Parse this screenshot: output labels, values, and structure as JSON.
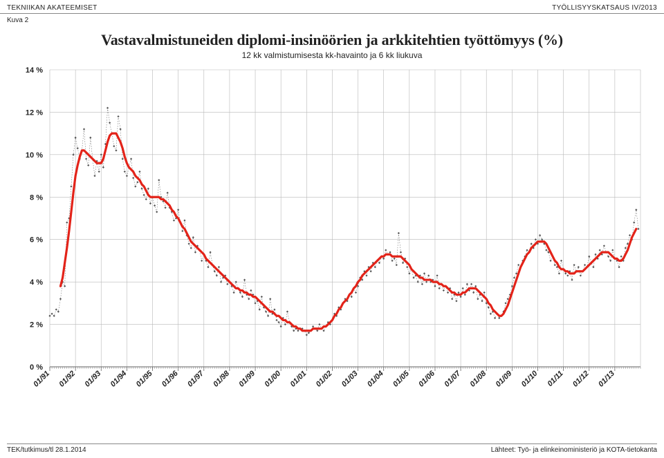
{
  "header": {
    "left": "TEKNIIKAN AKATEEMISET",
    "right": "TYÖLLISYYSKATSAUS IV/2013",
    "figure_label": "Kuva 2"
  },
  "title": {
    "main": "Vastavalmistuneiden diplomi-insinöörien ja arkkitehtien työttömyys (%)",
    "sub": "12 kk valmistumisesta kk-havainto ja 6 kk liukuva"
  },
  "footer": {
    "left": "TEK/tutkimus/tl 28.1.2014",
    "right": "Lähteet: Työ- ja elinkeinoministeriö ja KOTA-tietokanta"
  },
  "chart": {
    "type": "line",
    "background_color": "#ffffff",
    "grid_color": "#b8b8b8",
    "axis_color": "#666666",
    "label_fontsize": 11,
    "tick_fontsize": 11,
    "xlabel_rotation": -45,
    "ylim": [
      0,
      14
    ],
    "ytick_step": 2,
    "ytick_format_suffix": " %",
    "xlim": [
      0,
      276
    ],
    "xticks_major_every": 12,
    "xticks_minor_every": 1,
    "xlabels": [
      "01/91",
      "01/92",
      "01/93",
      "01/94",
      "01/95",
      "01/96",
      "01/97",
      "01/98",
      "01/99",
      "01/00",
      "01/01",
      "01/02",
      "01/03",
      "01/04",
      "01/05",
      "01/06",
      "01/07",
      "01/08",
      "01/09",
      "01/10",
      "01/11",
      "01/12",
      "01/13"
    ],
    "series": [
      {
        "name": "kk-havainto",
        "color": "#555555",
        "marker_color": "#555555",
        "marker": "diamond",
        "marker_size": 3.2,
        "line_width": 0.5,
        "dash": "1.5,2",
        "values": [
          2.4,
          2.5,
          2.4,
          2.7,
          2.6,
          3.2,
          4.0,
          3.8,
          6.8,
          7.0,
          8.5,
          10.0,
          10.8,
          10.3,
          9.8,
          10.2,
          11.2,
          9.8,
          9.5,
          10.8,
          9.8,
          9.0,
          9.7,
          9.2,
          10.0,
          9.4,
          10.5,
          12.2,
          11.5,
          11.0,
          10.4,
          10.2,
          11.8,
          11.2,
          9.8,
          9.2,
          9.0,
          9.4,
          9.8,
          8.9,
          8.5,
          8.7,
          9.2,
          8.4,
          8.1,
          7.9,
          8.4,
          7.7,
          8.0,
          7.6,
          7.3,
          8.8,
          8.0,
          7.8,
          7.5,
          8.2,
          7.5,
          7.3,
          6.9,
          7.0,
          7.4,
          6.8,
          6.4,
          6.9,
          6.2,
          5.8,
          5.6,
          6.1,
          5.4,
          5.7,
          5.5,
          5.0,
          5.3,
          5.0,
          4.7,
          5.4,
          4.8,
          4.5,
          4.3,
          4.7,
          4.0,
          4.2,
          4.3,
          3.9,
          4.0,
          3.8,
          3.5,
          4.0,
          3.7,
          3.5,
          3.3,
          4.1,
          3.4,
          3.2,
          3.6,
          3.4,
          3.0,
          3.1,
          2.7,
          3.3,
          2.8,
          2.6,
          2.4,
          3.2,
          2.5,
          2.7,
          2.2,
          2.1,
          1.9,
          2.3,
          2.0,
          2.6,
          2.1,
          1.9,
          1.7,
          1.8,
          1.7,
          1.8,
          1.8,
          1.7,
          1.5,
          1.6,
          1.7,
          1.9,
          1.8,
          1.7,
          2.0,
          1.8,
          1.7,
          1.9,
          2.1,
          2.0,
          2.2,
          2.5,
          2.4,
          2.8,
          2.7,
          3.0,
          3.2,
          3.1,
          3.4,
          3.3,
          3.7,
          3.5,
          3.8,
          4.2,
          4.1,
          4.5,
          4.3,
          4.7,
          4.5,
          4.9,
          4.7,
          5.0,
          4.9,
          5.2,
          5.1,
          5.5,
          5.3,
          5.4,
          5.0,
          5.1,
          4.8,
          6.3,
          5.4,
          4.9,
          5.1,
          4.7,
          4.4,
          4.6,
          4.2,
          4.3,
          4.0,
          4.3,
          3.9,
          4.4,
          4.0,
          4.3,
          4.0,
          4.1,
          3.8,
          4.3,
          3.7,
          3.9,
          3.6,
          3.8,
          3.5,
          3.7,
          3.2,
          3.4,
          3.1,
          3.5,
          3.3,
          3.7,
          3.4,
          3.9,
          3.6,
          3.9,
          3.5,
          3.8,
          3.2,
          3.4,
          3.1,
          3.5,
          3.0,
          2.8,
          2.5,
          2.6,
          2.3,
          2.5,
          2.3,
          2.4,
          2.6,
          3.0,
          3.2,
          3.4,
          3.8,
          4.2,
          4.4,
          4.8,
          4.7,
          5.0,
          5.2,
          5.5,
          5.4,
          5.8,
          5.6,
          6.0,
          5.8,
          6.2,
          6.0,
          5.8,
          5.5,
          5.4,
          5.0,
          5.2,
          4.8,
          4.7,
          4.4,
          5.0,
          4.6,
          4.4,
          4.3,
          4.5,
          4.1,
          4.8,
          4.5,
          4.7,
          4.3,
          4.5,
          4.8,
          4.7,
          5.2,
          4.9,
          4.7,
          5.3,
          5.1,
          5.5,
          5.3,
          5.7,
          5.4,
          5.2,
          5.0,
          5.5,
          5.1,
          5.0,
          4.7,
          5.2,
          5.0,
          5.6,
          5.8,
          6.2,
          6.0,
          6.8,
          7.4,
          6.5
        ]
      },
      {
        "name": "6kk-liukuva",
        "color": "#e32319",
        "line_width": 3.2,
        "marker": "none",
        "values": [
          null,
          null,
          null,
          null,
          null,
          3.8,
          4.2,
          4.9,
          5.6,
          6.4,
          7.3,
          8.2,
          9.0,
          9.5,
          9.9,
          10.2,
          10.2,
          10.1,
          10.0,
          9.9,
          9.8,
          9.7,
          9.6,
          9.6,
          9.6,
          9.8,
          10.2,
          10.6,
          10.9,
          11.0,
          11.0,
          11.0,
          10.8,
          10.6,
          10.3,
          9.9,
          9.6,
          9.4,
          9.3,
          9.2,
          9.0,
          8.9,
          8.8,
          8.6,
          8.5,
          8.3,
          8.1,
          8.0,
          8.0,
          8.0,
          8.0,
          8.0,
          7.9,
          7.9,
          7.8,
          7.7,
          7.6,
          7.4,
          7.3,
          7.1,
          7.0,
          6.8,
          6.6,
          6.5,
          6.3,
          6.1,
          5.9,
          5.8,
          5.7,
          5.6,
          5.5,
          5.4,
          5.3,
          5.1,
          5.0,
          4.9,
          4.8,
          4.7,
          4.6,
          4.5,
          4.4,
          4.3,
          4.2,
          4.1,
          4.0,
          3.9,
          3.8,
          3.7,
          3.7,
          3.6,
          3.6,
          3.5,
          3.5,
          3.4,
          3.4,
          3.3,
          3.3,
          3.2,
          3.1,
          3.0,
          2.9,
          2.8,
          2.7,
          2.6,
          2.6,
          2.5,
          2.4,
          2.4,
          2.3,
          2.2,
          2.2,
          2.1,
          2.1,
          2.0,
          1.9,
          1.9,
          1.8,
          1.8,
          1.7,
          1.7,
          1.7,
          1.7,
          1.7,
          1.8,
          1.8,
          1.8,
          1.8,
          1.8,
          1.9,
          1.9,
          2.0,
          2.1,
          2.2,
          2.4,
          2.5,
          2.7,
          2.8,
          3.0,
          3.1,
          3.2,
          3.4,
          3.5,
          3.7,
          3.8,
          4.0,
          4.1,
          4.3,
          4.4,
          4.5,
          4.6,
          4.7,
          4.8,
          4.9,
          5.0,
          5.1,
          5.2,
          5.2,
          5.3,
          5.3,
          5.3,
          5.2,
          5.2,
          5.2,
          5.2,
          5.2,
          5.1,
          5.0,
          4.9,
          4.8,
          4.6,
          4.5,
          4.4,
          4.3,
          4.2,
          4.2,
          4.1,
          4.1,
          4.1,
          4.1,
          4.0,
          4.0,
          4.0,
          3.9,
          3.9,
          3.8,
          3.8,
          3.7,
          3.6,
          3.5,
          3.5,
          3.4,
          3.4,
          3.4,
          3.5,
          3.5,
          3.6,
          3.7,
          3.7,
          3.7,
          3.7,
          3.6,
          3.5,
          3.4,
          3.3,
          3.2,
          3.0,
          2.9,
          2.7,
          2.6,
          2.5,
          2.4,
          2.4,
          2.5,
          2.7,
          2.9,
          3.2,
          3.5,
          3.8,
          4.1,
          4.4,
          4.7,
          4.9,
          5.1,
          5.3,
          5.4,
          5.6,
          5.7,
          5.8,
          5.9,
          5.9,
          5.9,
          5.9,
          5.8,
          5.6,
          5.4,
          5.2,
          5.0,
          4.9,
          4.7,
          4.6,
          4.6,
          4.5,
          4.5,
          4.4,
          4.4,
          4.4,
          4.5,
          4.5,
          4.5,
          4.5,
          4.6,
          4.7,
          4.8,
          4.9,
          5.0,
          5.1,
          5.2,
          5.3,
          5.4,
          5.4,
          5.4,
          5.4,
          5.3,
          5.2,
          5.1,
          5.1,
          5.0,
          5.0,
          5.1,
          5.3,
          5.5,
          5.8,
          6.1,
          6.3,
          6.5
        ]
      }
    ]
  }
}
